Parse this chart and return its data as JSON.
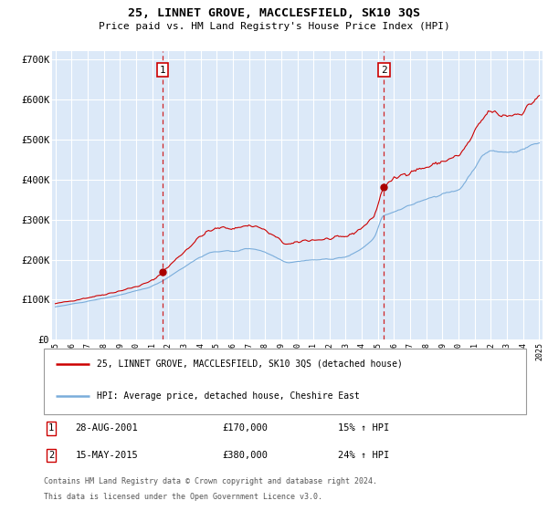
{
  "title": "25, LINNET GROVE, MACCLESFIELD, SK10 3QS",
  "subtitle": "Price paid vs. HM Land Registry's House Price Index (HPI)",
  "plot_bg_color": "#dce9f8",
  "ylim": [
    0,
    720000
  ],
  "yticks": [
    0,
    100000,
    200000,
    300000,
    400000,
    500000,
    600000,
    700000
  ],
  "ytick_labels": [
    "£0",
    "£100K",
    "£200K",
    "£300K",
    "£400K",
    "£500K",
    "£600K",
    "£700K"
  ],
  "x_start_year": 1995,
  "x_end_year": 2025,
  "marker1_year": 2001.667,
  "marker1_price": 170000,
  "marker1_label": "1",
  "marker1_date": "28-AUG-2001",
  "marker1_pct": "15% ↑ HPI",
  "marker2_year": 2015.375,
  "marker2_price": 380000,
  "marker2_label": "2",
  "marker2_date": "15-MAY-2015",
  "marker2_pct": "24% ↑ HPI",
  "red_line_color": "#cc0000",
  "blue_line_color": "#7aaddb",
  "grid_color": "#ffffff",
  "dashed_color": "#cc0000",
  "dot_color": "#aa0000",
  "legend1_label": "25, LINNET GROVE, MACCLESFIELD, SK10 3QS (detached house)",
  "legend2_label": "HPI: Average price, detached house, Cheshire East",
  "footer1": "Contains HM Land Registry data © Crown copyright and database right 2024.",
  "footer2": "This data is licensed under the Open Government Licence v3.0."
}
